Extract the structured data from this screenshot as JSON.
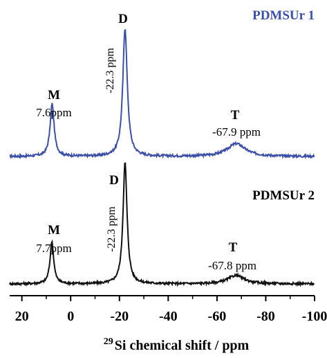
{
  "chart_data": {
    "type": "line",
    "xlabel_sup": "29",
    "xlabel": "Si chemical shift / ppm",
    "xlim": [
      25,
      -100
    ],
    "x_ticks": [
      {
        "value": 20,
        "label": "20"
      },
      {
        "value": 0,
        "label": "0"
      },
      {
        "value": -20,
        "label": "-20"
      },
      {
        "value": -40,
        "label": "-40"
      },
      {
        "value": -60,
        "label": "-60"
      },
      {
        "value": -80,
        "label": "-80"
      },
      {
        "value": -100,
        "label": "-100"
      }
    ],
    "series": [
      {
        "name": "PDMSUr 1",
        "color": "#3b4fa8",
        "peaks": [
          {
            "x": 7.6,
            "height": 0.41
          },
          {
            "x": -22.3,
            "height": 1.0
          },
          {
            "x": -67.9,
            "height": 0.1
          }
        ],
        "annotations": [
          {
            "letter": "M",
            "value": "7.6ppm"
          },
          {
            "letter": "D",
            "value": "-22.3 ppm"
          },
          {
            "letter": "T",
            "value": "-67.9 ppm"
          }
        ]
      },
      {
        "name": "PDMSUr 2",
        "color": "#111111",
        "peaks": [
          {
            "x": 7.7,
            "height": 0.35
          },
          {
            "x": -22.3,
            "height": 1.0
          },
          {
            "x": -67.8,
            "height": 0.07
          }
        ],
        "annotations": [
          {
            "letter": "M",
            "value": "7.7ppm"
          },
          {
            "letter": "D",
            "value": "-22.3 ppm"
          },
          {
            "letter": "T",
            "value": "-67.8 ppm"
          }
        ]
      }
    ]
  }
}
